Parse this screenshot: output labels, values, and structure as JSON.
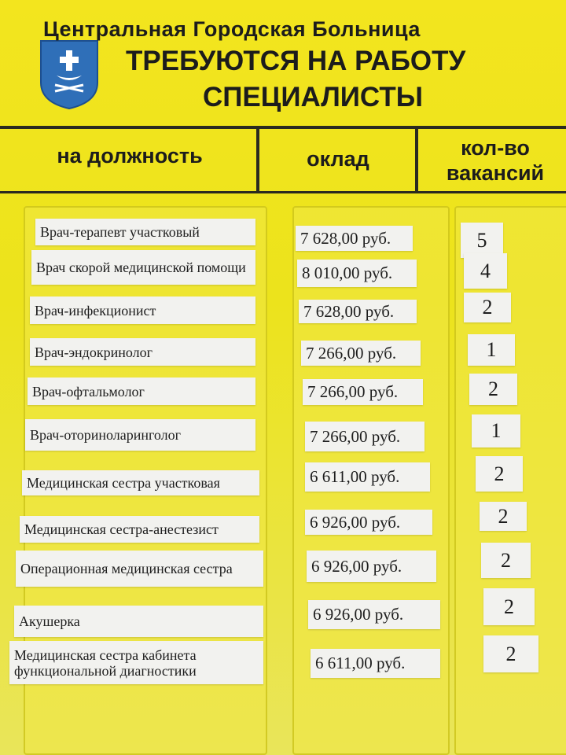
{
  "header": {
    "hospital": "Центральная Городская Больница",
    "title_line1": "ТРЕБУЮТСЯ НА РАБОТУ",
    "title_line2": "СПЕЦИАЛИСТЫ",
    "emblem": "coat-of-arms-shield"
  },
  "columns": {
    "position": "на должность",
    "salary": "оклад",
    "vacancies_line1": "кол-во",
    "vacancies_line2": "вакансий"
  },
  "rows": [
    {
      "position": "Врач-терапевт участковый",
      "salary": "7 628,00 руб.",
      "count": "5"
    },
    {
      "position": "Врач скорой медицинской помощи",
      "salary": "8 010,00 руб.",
      "count": "4"
    },
    {
      "position": "Врач-инфекционист",
      "salary": "7 628,00 руб.",
      "count": "2"
    },
    {
      "position": "Врач-эндокринолог",
      "salary": "7 266,00 руб.",
      "count": "1"
    },
    {
      "position": "Врач-офтальмолог",
      "salary": "7 266,00 руб.",
      "count": "2"
    },
    {
      "position": "Врач-оториноларинголог",
      "salary": "7 266,00 руб.",
      "count": "1"
    },
    {
      "position": "Медицинская сестра участковая",
      "salary": "6 611,00 руб.",
      "count": "2"
    },
    {
      "position": "Медицинская сестра-анестезист",
      "salary": "6 926,00 руб.",
      "count": "2"
    },
    {
      "position": "Операционная медицинская сестра",
      "salary": "6 926,00 руб.",
      "count": "2"
    },
    {
      "position": "Акушерка",
      "salary": "6 926,00 руб.",
      "count": "2"
    },
    {
      "position": "Медицинская сестра кабинета функциональной диагностики",
      "salary": "6 611,00 руб.",
      "count": "2"
    }
  ],
  "colors": {
    "board": "#eee21e",
    "label": "#f2f2ef",
    "emblem": "#2f6fb8"
  }
}
